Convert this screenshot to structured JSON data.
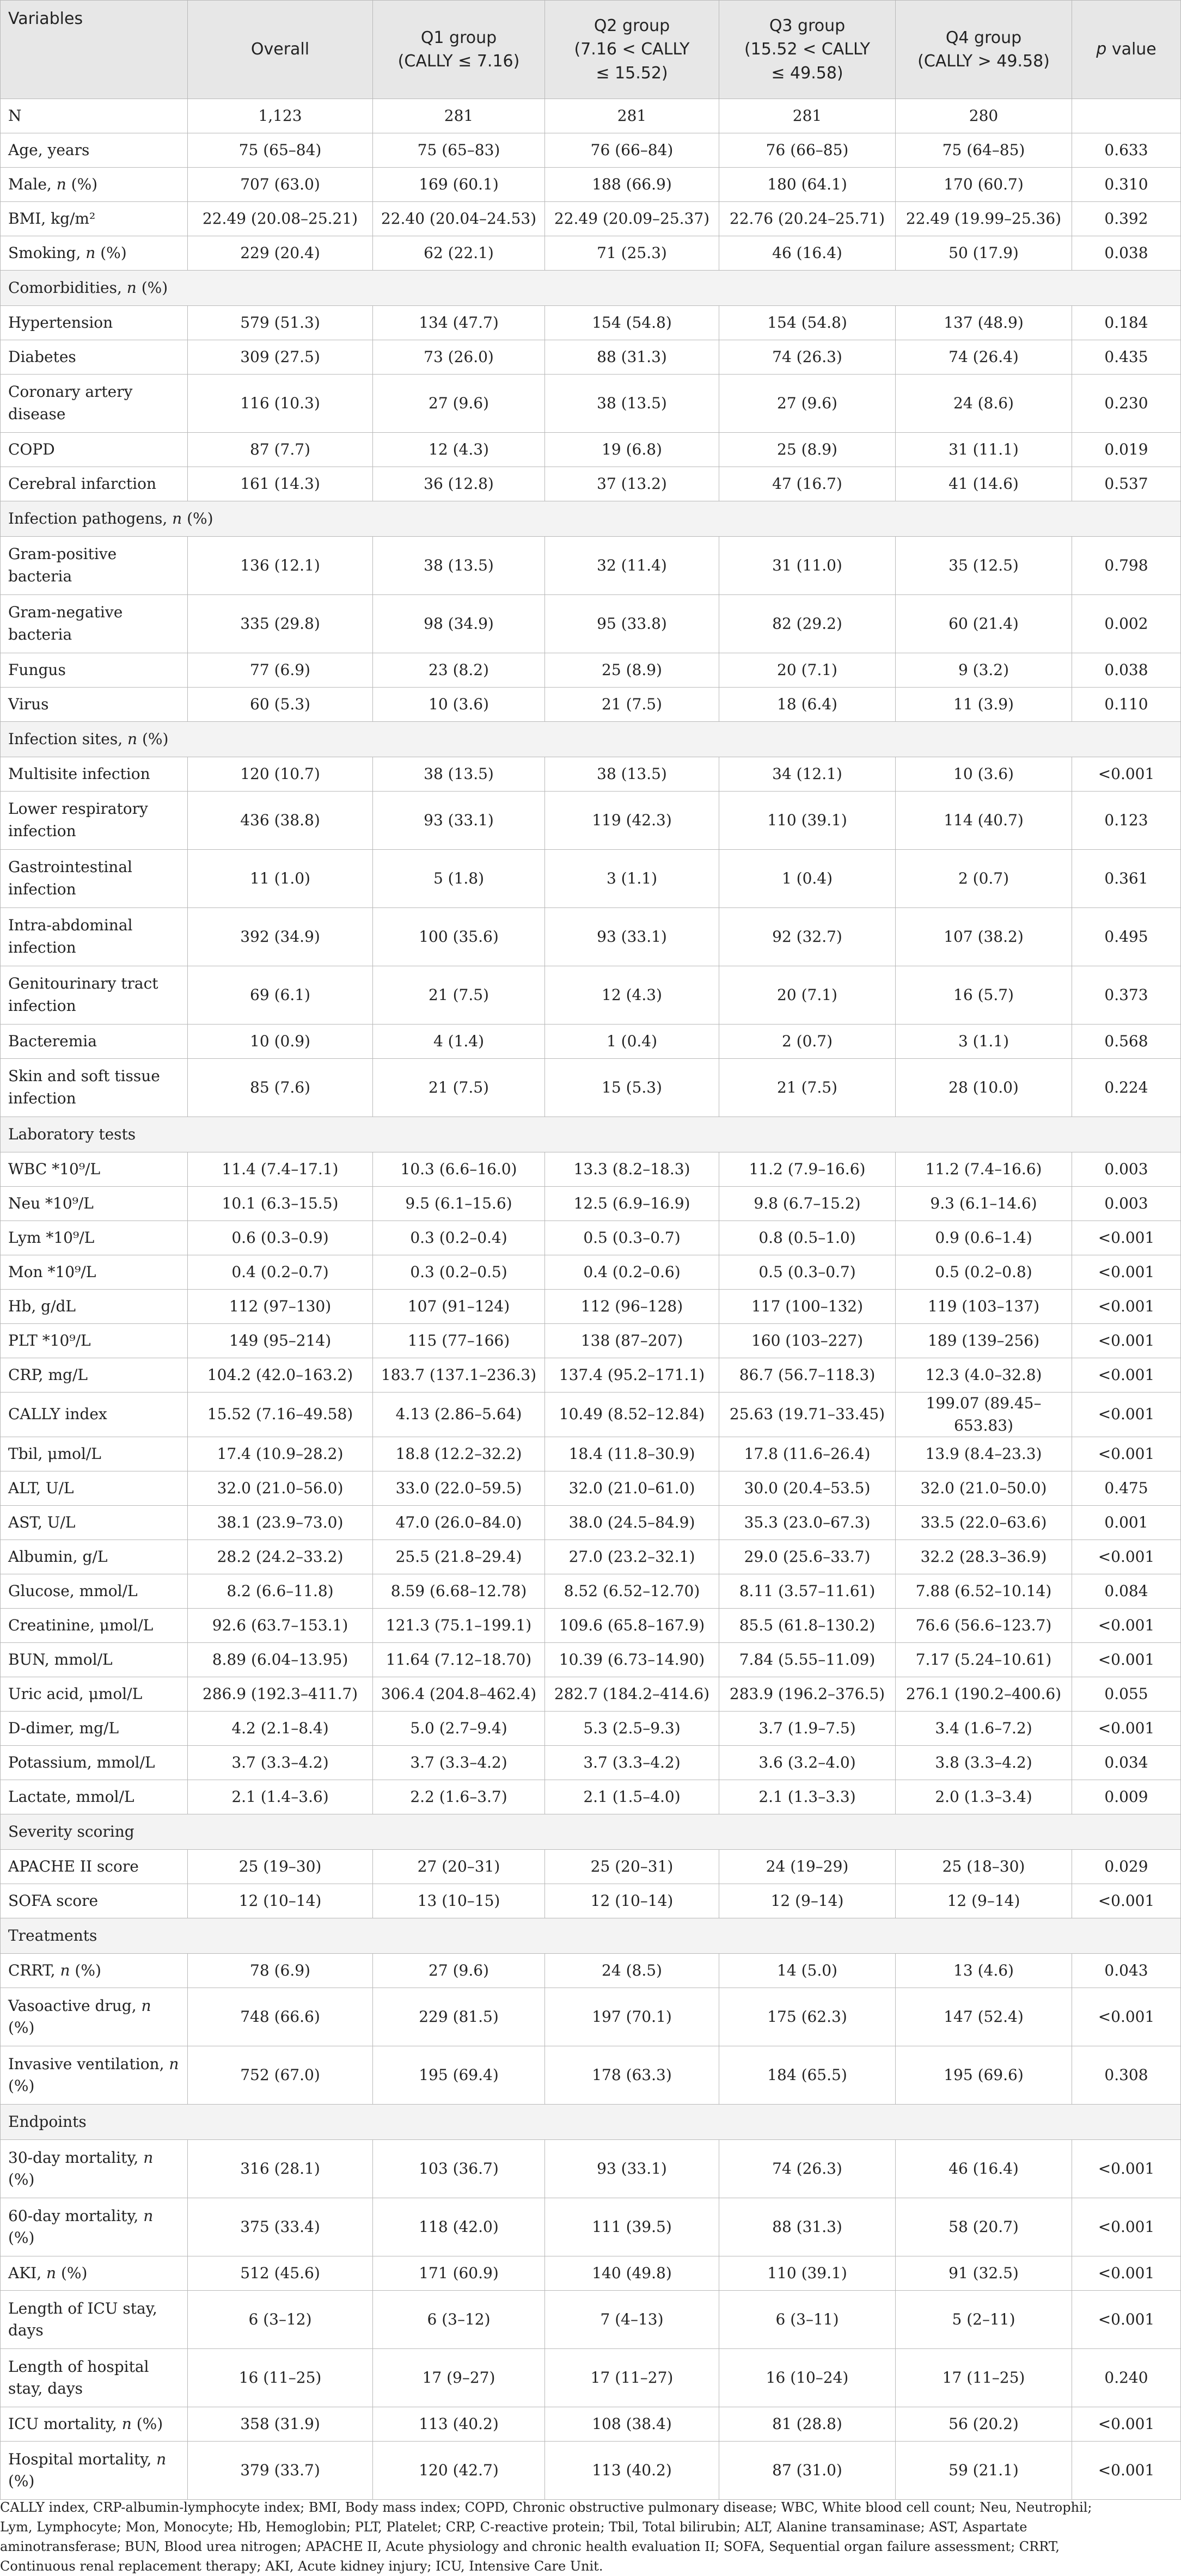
{
  "columns": [
    "Variables",
    "Overall",
    "Q1 group\n(CALLY ≤ 7.16)",
    "Q2 group\n(7.16 < CALLY\n≤ 15.52)",
    "Q3 group\n(15.52 < CALLY\n≤ 49.58)",
    "Q4 group\n(CALLY > 49.58)",
    "p value"
  ],
  "rows": [
    {
      "type": "data",
      "cells": [
        "N",
        "1,123",
        "281",
        "281",
        "281",
        "280",
        ""
      ]
    },
    {
      "type": "data",
      "cells": [
        "Age, years",
        "75 (65–84)",
        "75 (65–83)",
        "76 (66–84)",
        "76 (66–85)",
        "75 (64–85)",
        "0.633"
      ]
    },
    {
      "type": "data",
      "cells": [
        "Male, n (%)",
        "707 (63.0)",
        "169 (60.1)",
        "188 (66.9)",
        "180 (64.1)",
        "170 (60.7)",
        "0.310"
      ]
    },
    {
      "type": "data",
      "cells": [
        "BMI, kg/m²",
        "22.49 (20.08–25.21)",
        "22.40 (20.04–24.53)",
        "22.49 (20.09–25.37)",
        "22.76 (20.24–25.71)",
        "22.49 (19.99–25.36)",
        "0.392"
      ]
    },
    {
      "type": "data",
      "cells": [
        "Smoking, n (%)",
        "229 (20.4)",
        "62 (22.1)",
        "71 (25.3)",
        "46 (16.4)",
        "50 (17.9)",
        "0.038"
      ]
    },
    {
      "type": "section",
      "cells": [
        "Comorbidities, n (%)"
      ]
    },
    {
      "type": "data",
      "cells": [
        "Hypertension",
        "579 (51.3)",
        "134 (47.7)",
        "154 (54.8)",
        "154 (54.8)",
        "137 (48.9)",
        "0.184"
      ]
    },
    {
      "type": "data",
      "cells": [
        "Diabetes",
        "309 (27.5)",
        "73 (26.0)",
        "88 (31.3)",
        "74 (26.3)",
        "74 (26.4)",
        "0.435"
      ]
    },
    {
      "type": "tall",
      "cells": [
        "Coronary artery disease",
        "116 (10.3)",
        "27 (9.6)",
        "38 (13.5)",
        "27 (9.6)",
        "24 (8.6)",
        "0.230"
      ]
    },
    {
      "type": "data",
      "cells": [
        "COPD",
        "87 (7.7)",
        "12 (4.3)",
        "19 (6.8)",
        "25 (8.9)",
        "31 (11.1)",
        "0.019"
      ]
    },
    {
      "type": "data",
      "cells": [
        "Cerebral infarction",
        "161 (14.3)",
        "36 (12.8)",
        "37 (13.2)",
        "47 (16.7)",
        "41 (14.6)",
        "0.537"
      ]
    },
    {
      "type": "section",
      "cells": [
        "Infection pathogens, n (%)"
      ]
    },
    {
      "type": "tall",
      "cells": [
        "Gram-positive bacteria",
        "136 (12.1)",
        "38 (13.5)",
        "32 (11.4)",
        "31 (11.0)",
        "35 (12.5)",
        "0.798"
      ]
    },
    {
      "type": "tall",
      "cells": [
        "Gram-negative bacteria",
        "335 (29.8)",
        "98 (34.9)",
        "95 (33.8)",
        "82 (29.2)",
        "60 (21.4)",
        "0.002"
      ]
    },
    {
      "type": "data",
      "cells": [
        "Fungus",
        "77 (6.9)",
        "23 (8.2)",
        "25 (8.9)",
        "20 (7.1)",
        "9 (3.2)",
        "0.038"
      ]
    },
    {
      "type": "data",
      "cells": [
        "Virus",
        "60 (5.3)",
        "10 (3.6)",
        "21 (7.5)",
        "18 (6.4)",
        "11 (3.9)",
        "0.110"
      ]
    },
    {
      "type": "section",
      "cells": [
        "Infection sites, n (%)"
      ]
    },
    {
      "type": "data",
      "cells": [
        "Multisite infection",
        "120 (10.7)",
        "38 (13.5)",
        "38 (13.5)",
        "34 (12.1)",
        "10 (3.6)",
        "<0.001"
      ]
    },
    {
      "type": "tall",
      "cells": [
        "Lower respiratory infection",
        "436 (38.8)",
        "93 (33.1)",
        "119 (42.3)",
        "110 (39.1)",
        "114 (40.7)",
        "0.123"
      ]
    },
    {
      "type": "tall",
      "cells": [
        "Gastrointestinal infection",
        "11 (1.0)",
        "5 (1.8)",
        "3 (1.1)",
        "1 (0.4)",
        "2 (0.7)",
        "0.361"
      ]
    },
    {
      "type": "tall",
      "cells": [
        "Intra-abdominal infection",
        "392 (34.9)",
        "100 (35.6)",
        "93 (33.1)",
        "92 (32.7)",
        "107 (38.2)",
        "0.495"
      ]
    },
    {
      "type": "tall",
      "cells": [
        "Genitourinary tract infection",
        "69 (6.1)",
        "21 (7.5)",
        "12 (4.3)",
        "20 (7.1)",
        "16 (5.7)",
        "0.373"
      ]
    },
    {
      "type": "data",
      "cells": [
        "Bacteremia",
        "10 (0.9)",
        "4 (1.4)",
        "1 (0.4)",
        "2 (0.7)",
        "3 (1.1)",
        "0.568"
      ]
    },
    {
      "type": "tall",
      "cells": [
        "Skin and soft tissue infection",
        "85 (7.6)",
        "21 (7.5)",
        "15 (5.3)",
        "21 (7.5)",
        "28 (10.0)",
        "0.224"
      ]
    },
    {
      "type": "section",
      "cells": [
        "Laboratory tests"
      ]
    },
    {
      "type": "data",
      "cells": [
        "WBC *10⁹/L",
        "11.4 (7.4–17.1)",
        "10.3 (6.6–16.0)",
        "13.3 (8.2–18.3)",
        "11.2 (7.9–16.6)",
        "11.2 (7.4–16.6)",
        "0.003"
      ]
    },
    {
      "type": "data",
      "cells": [
        "Neu *10⁹/L",
        "10.1 (6.3–15.5)",
        "9.5 (6.1–15.6)",
        "12.5 (6.9–16.9)",
        "9.8 (6.7–15.2)",
        "9.3 (6.1–14.6)",
        "0.003"
      ]
    },
    {
      "type": "data",
      "cells": [
        "Lym *10⁹/L",
        "0.6 (0.3–0.9)",
        "0.3 (0.2–0.4)",
        "0.5 (0.3–0.7)",
        "0.8 (0.5–1.0)",
        "0.9 (0.6–1.4)",
        "<0.001"
      ]
    },
    {
      "type": "data",
      "cells": [
        "Mon *10⁹/L",
        "0.4 (0.2–0.7)",
        "0.3 (0.2–0.5)",
        "0.4 (0.2–0.6)",
        "0.5 (0.3–0.7)",
        "0.5 (0.2–0.8)",
        "<0.001"
      ]
    },
    {
      "type": "data",
      "cells": [
        "Hb, g/dL",
        "112 (97–130)",
        "107 (91–124)",
        "112 (96–128)",
        "117 (100–132)",
        "119 (103–137)",
        "<0.001"
      ]
    },
    {
      "type": "data",
      "cells": [
        "PLT *10⁹/L",
        "149 (95–214)",
        "115 (77–166)",
        "138 (87–207)",
        "160 (103–227)",
        "189 (139–256)",
        "<0.001"
      ]
    },
    {
      "type": "data",
      "cells": [
        "CRP, mg/L",
        "104.2 (42.0–163.2)",
        "183.7 (137.1–236.3)",
        "137.4 (95.2–171.1)",
        "86.7 (56.7–118.3)",
        "12.3 (4.0–32.8)",
        "<0.001"
      ]
    },
    {
      "type": "data",
      "cells": [
        "CALLY index",
        "15.52 (7.16–49.58)",
        "4.13 (2.86–5.64)",
        "10.49 (8.52–12.84)",
        "25.63 (19.71–33.45)",
        "199.07 (89.45–653.83)",
        "<0.001"
      ]
    },
    {
      "type": "data",
      "cells": [
        "Tbil, μmol/L",
        "17.4 (10.9–28.2)",
        "18.8 (12.2–32.2)",
        "18.4 (11.8–30.9)",
        "17.8 (11.6–26.4)",
        "13.9 (8.4–23.3)",
        "<0.001"
      ]
    },
    {
      "type": "data",
      "cells": [
        "ALT, U/L",
        "32.0 (21.0–56.0)",
        "33.0 (22.0–59.5)",
        "32.0 (21.0–61.0)",
        "30.0 (20.4–53.5)",
        "32.0 (21.0–50.0)",
        "0.475"
      ]
    },
    {
      "type": "data",
      "cells": [
        "AST, U/L",
        "38.1 (23.9–73.0)",
        "47.0 (26.0–84.0)",
        "38.0 (24.5–84.9)",
        "35.3 (23.0–67.3)",
        "33.5 (22.0–63.6)",
        "0.001"
      ]
    },
    {
      "type": "data",
      "cells": [
        "Albumin, g/L",
        "28.2 (24.2–33.2)",
        "25.5 (21.8–29.4)",
        "27.0 (23.2–32.1)",
        "29.0 (25.6–33.7)",
        "32.2 (28.3–36.9)",
        "<0.001"
      ]
    },
    {
      "type": "data",
      "cells": [
        "Glucose, mmol/L",
        "8.2 (6.6–11.8)",
        "8.59 (6.68–12.78)",
        "8.52 (6.52–12.70)",
        "8.11 (3.57–11.61)",
        "7.88 (6.52–10.14)",
        "0.084"
      ]
    },
    {
      "type": "data",
      "cells": [
        "Creatinine, μmol/L",
        "92.6 (63.7–153.1)",
        "121.3 (75.1–199.1)",
        "109.6 (65.8–167.9)",
        "85.5 (61.8–130.2)",
        "76.6 (56.6–123.7)",
        "<0.001"
      ]
    },
    {
      "type": "data",
      "cells": [
        "BUN, mmol/L",
        "8.89 (6.04–13.95)",
        "11.64 (7.12–18.70)",
        "10.39 (6.73–14.90)",
        "7.84 (5.55–11.09)",
        "7.17 (5.24–10.61)",
        "<0.001"
      ]
    },
    {
      "type": "data",
      "cells": [
        "Uric acid, μmol/L",
        "286.9 (192.3–411.7)",
        "306.4 (204.8–462.4)",
        "282.7 (184.2–414.6)",
        "283.9 (196.2–376.5)",
        "276.1 (190.2–400.6)",
        "0.055"
      ]
    },
    {
      "type": "data",
      "cells": [
        "D-dimer, mg/L",
        "4.2 (2.1–8.4)",
        "5.0 (2.7–9.4)",
        "5.3 (2.5–9.3)",
        "3.7 (1.9–7.5)",
        "3.4 (1.6–7.2)",
        "<0.001"
      ]
    },
    {
      "type": "data",
      "cells": [
        "Potassium, mmol/L",
        "3.7 (3.3–4.2)",
        "3.7 (3.3–4.2)",
        "3.7 (3.3–4.2)",
        "3.6 (3.2–4.0)",
        "3.8 (3.3–4.2)",
        "0.034"
      ]
    },
    {
      "type": "data",
      "cells": [
        "Lactate, mmol/L",
        "2.1 (1.4–3.6)",
        "2.2 (1.6–3.7)",
        "2.1 (1.5–4.0)",
        "2.1 (1.3–3.3)",
        "2.0 (1.3–3.4)",
        "0.009"
      ]
    },
    {
      "type": "section",
      "cells": [
        "Severity scoring"
      ]
    },
    {
      "type": "data",
      "cells": [
        "APACHE II score",
        "25 (19–30)",
        "27 (20–31)",
        "25 (20–31)",
        "24 (19–29)",
        "25 (18–30)",
        "0.029"
      ]
    },
    {
      "type": "data",
      "cells": [
        "SOFA score",
        "12 (10–14)",
        "13 (10–15)",
        "12 (10–14)",
        "12 (9–14)",
        "12 (9–14)",
        "<0.001"
      ]
    },
    {
      "type": "section",
      "cells": [
        "Treatments"
      ]
    },
    {
      "type": "data",
      "cells": [
        "CRRT, n (%)",
        "78 (6.9)",
        "27 (9.6)",
        "24 (8.5)",
        "14 (5.0)",
        "13 (4.6)",
        "0.043"
      ]
    },
    {
      "type": "tall",
      "cells": [
        "Vasoactive drug, n (%)",
        "748 (66.6)",
        "229 (81.5)",
        "197 (70.1)",
        "175 (62.3)",
        "147 (52.4)",
        "<0.001"
      ]
    },
    {
      "type": "tall",
      "cells": [
        "Invasive ventilation, n (%)",
        "752 (67.0)",
        "195 (69.4)",
        "178 (63.3)",
        "184 (65.5)",
        "195 (69.6)",
        "0.308"
      ]
    },
    {
      "type": "section",
      "cells": [
        "Endpoints"
      ]
    },
    {
      "type": "tall",
      "cells": [
        "30-day mortality, n (%)",
        "316 (28.1)",
        "103 (36.7)",
        "93 (33.1)",
        "74 (26.3)",
        "46 (16.4)",
        "<0.001"
      ]
    },
    {
      "type": "tall",
      "cells": [
        "60-day mortality, n (%)",
        "375 (33.4)",
        "118 (42.0)",
        "111 (39.5)",
        "88 (31.3)",
        "58 (20.7)",
        "<0.001"
      ]
    },
    {
      "type": "data",
      "cells": [
        "AKI, n (%)",
        "512 (45.6)",
        "171 (60.9)",
        "140 (49.8)",
        "110 (39.1)",
        "91 (32.5)",
        "<0.001"
      ]
    },
    {
      "type": "tall",
      "cells": [
        "Length of ICU stay, days",
        "6 (3–12)",
        "6 (3–12)",
        "7 (4–13)",
        "6 (3–11)",
        "5 (2–11)",
        "<0.001"
      ]
    },
    {
      "type": "tall",
      "cells": [
        "Length of hospital stay, days",
        "16 (11–25)",
        "17 (9–27)",
        "17 (11–27)",
        "16 (10–24)",
        "17 (11–25)",
        "0.240"
      ]
    },
    {
      "type": "data",
      "cells": [
        "ICU mortality, n (%)",
        "358 (31.9)",
        "113 (40.2)",
        "108 (38.4)",
        "81 (28.8)",
        "56 (20.2)",
        "<0.001"
      ]
    },
    {
      "type": "tall",
      "cells": [
        "Hospital mortality, n (%)",
        "379 (33.7)",
        "120 (42.7)",
        "113 (40.2)",
        "87 (31.0)",
        "59 (21.1)",
        "<0.001"
      ]
    }
  ],
  "footnote": "CALLY index, CRP-albumin-lymphocyte index; BMI, Body mass index; COPD, Chronic obstructive pulmonary disease; WBC, White blood cell count; Neu, Neutrophil; Lym, Lymphocyte; Mon, Monocyte; Hb, Hemoglobin; PLT, Platelet; CRP, C-reactive protein; Tbil, Total bilirubin; ALT, Alanine transaminase; AST, Aspartate aminotransferase; BUN, Blood urea nitrogen; APACHE II, Acute physiology and chronic health evaluation II; SOFA, Sequential organ failure assessment; CRRT, Continuous renal replacement therapy; AKI, Acute kidney injury; ICU, Intensive Care Unit."
}
